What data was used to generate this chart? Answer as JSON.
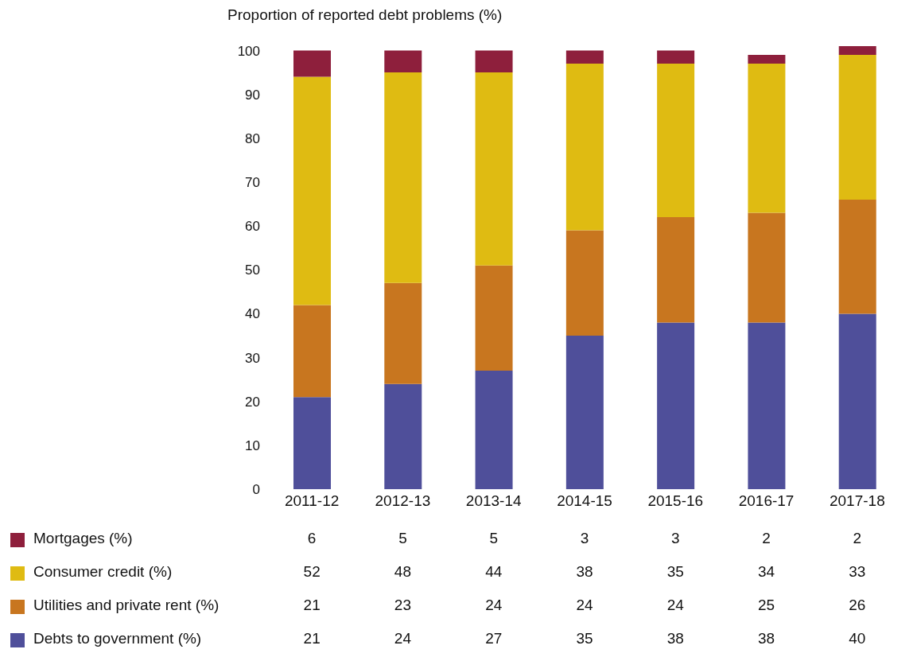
{
  "chart_data": {
    "type": "bar",
    "stacked": true,
    "ylabel": "Proportion of reported debt problems (%)",
    "categories": [
      "2011-12",
      "2012-13",
      "2013-14",
      "2014-15",
      "2015-16",
      "2016-17",
      "2017-18"
    ],
    "series": [
      {
        "name": "Debts to government (%)",
        "color": "#4f4f9a",
        "values": [
          21,
          24,
          27,
          35,
          38,
          38,
          40
        ]
      },
      {
        "name": "Utilities and private rent (%)",
        "color": "#c8761f",
        "values": [
          21,
          23,
          24,
          24,
          24,
          25,
          26
        ]
      },
      {
        "name": "Consumer credit (%)",
        "color": "#dfbb12",
        "values": [
          52,
          48,
          44,
          38,
          35,
          34,
          33
        ]
      },
      {
        "name": "Mortgages (%)",
        "color": "#8e1f3c",
        "values": [
          6,
          5,
          5,
          3,
          3,
          2,
          2
        ]
      }
    ],
    "ylim": [
      0,
      101
    ],
    "yticks": [
      0,
      10,
      20,
      30,
      40,
      50,
      60,
      70,
      80,
      90,
      100
    ],
    "grid": false,
    "legend": "bottom",
    "data_labels": true
  }
}
